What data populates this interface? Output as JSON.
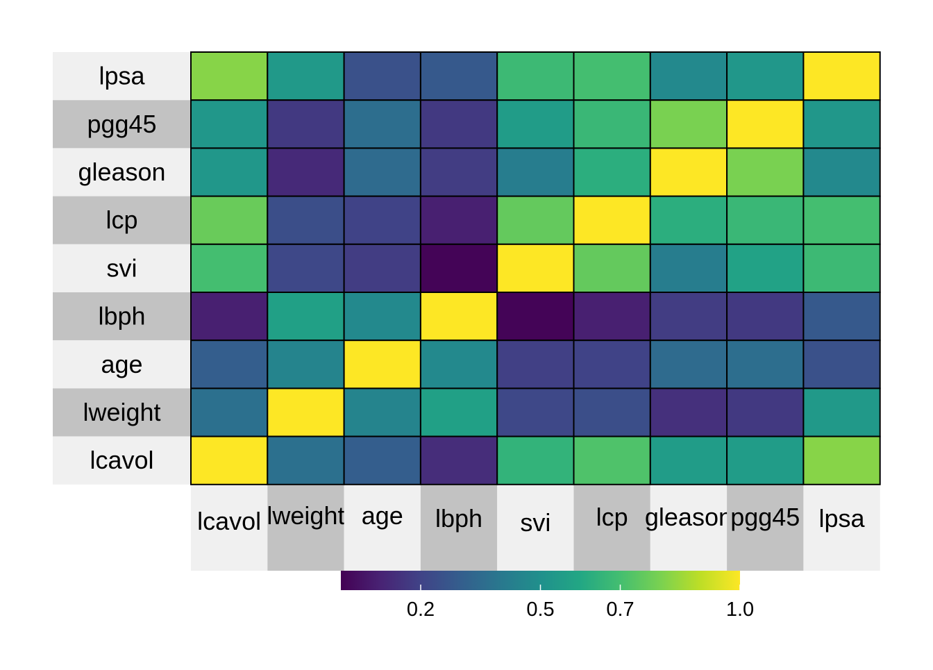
{
  "chart_data": {
    "type": "heatmap",
    "title": "",
    "variables": [
      "lcavol",
      "lweight",
      "age",
      "lbph",
      "svi",
      "lcp",
      "gleason",
      "pgg45",
      "lpsa"
    ],
    "rows_top_to_bottom": [
      "lpsa",
      "pgg45",
      "gleason",
      "lcp",
      "svi",
      "lbph",
      "age",
      "lweight",
      "lcavol"
    ],
    "columns": [
      "lcavol",
      "lweight",
      "age",
      "lbph",
      "svi",
      "lcp",
      "gleason",
      "pgg45",
      "lpsa"
    ],
    "matrix": [
      [
        0.82,
        0.54,
        0.25,
        0.28,
        0.68,
        0.7,
        0.47,
        0.53,
        1.0
      ],
      [
        0.53,
        0.17,
        0.36,
        0.17,
        0.55,
        0.67,
        0.8,
        1.0,
        0.53
      ],
      [
        0.53,
        0.12,
        0.35,
        0.18,
        0.42,
        0.63,
        1.0,
        0.8,
        0.47
      ],
      [
        0.77,
        0.24,
        0.2,
        0.09,
        0.76,
        1.0,
        0.63,
        0.67,
        0.7
      ],
      [
        0.7,
        0.22,
        0.18,
        0.01,
        1.0,
        0.76,
        0.42,
        0.58,
        0.68
      ],
      [
        0.09,
        0.57,
        0.47,
        1.0,
        0.01,
        0.09,
        0.18,
        0.17,
        0.28
      ],
      [
        0.3,
        0.45,
        1.0,
        0.47,
        0.19,
        0.2,
        0.35,
        0.36,
        0.25
      ],
      [
        0.37,
        1.0,
        0.45,
        0.57,
        0.22,
        0.24,
        0.14,
        0.17,
        0.54
      ],
      [
        1.0,
        0.37,
        0.3,
        0.13,
        0.65,
        0.72,
        0.55,
        0.55,
        0.82
      ]
    ],
    "colorbar": {
      "palette": "viridis",
      "range": [
        0,
        1
      ],
      "ticks": [
        0.2,
        0.5,
        0.7,
        1.0
      ],
      "tick_labels": [
        "0.2",
        "0.5",
        "0.7",
        "1.0"
      ]
    },
    "row_label_colors": [
      "#f0f0f0",
      "#c2c2c2"
    ],
    "border_color": "#000000"
  }
}
